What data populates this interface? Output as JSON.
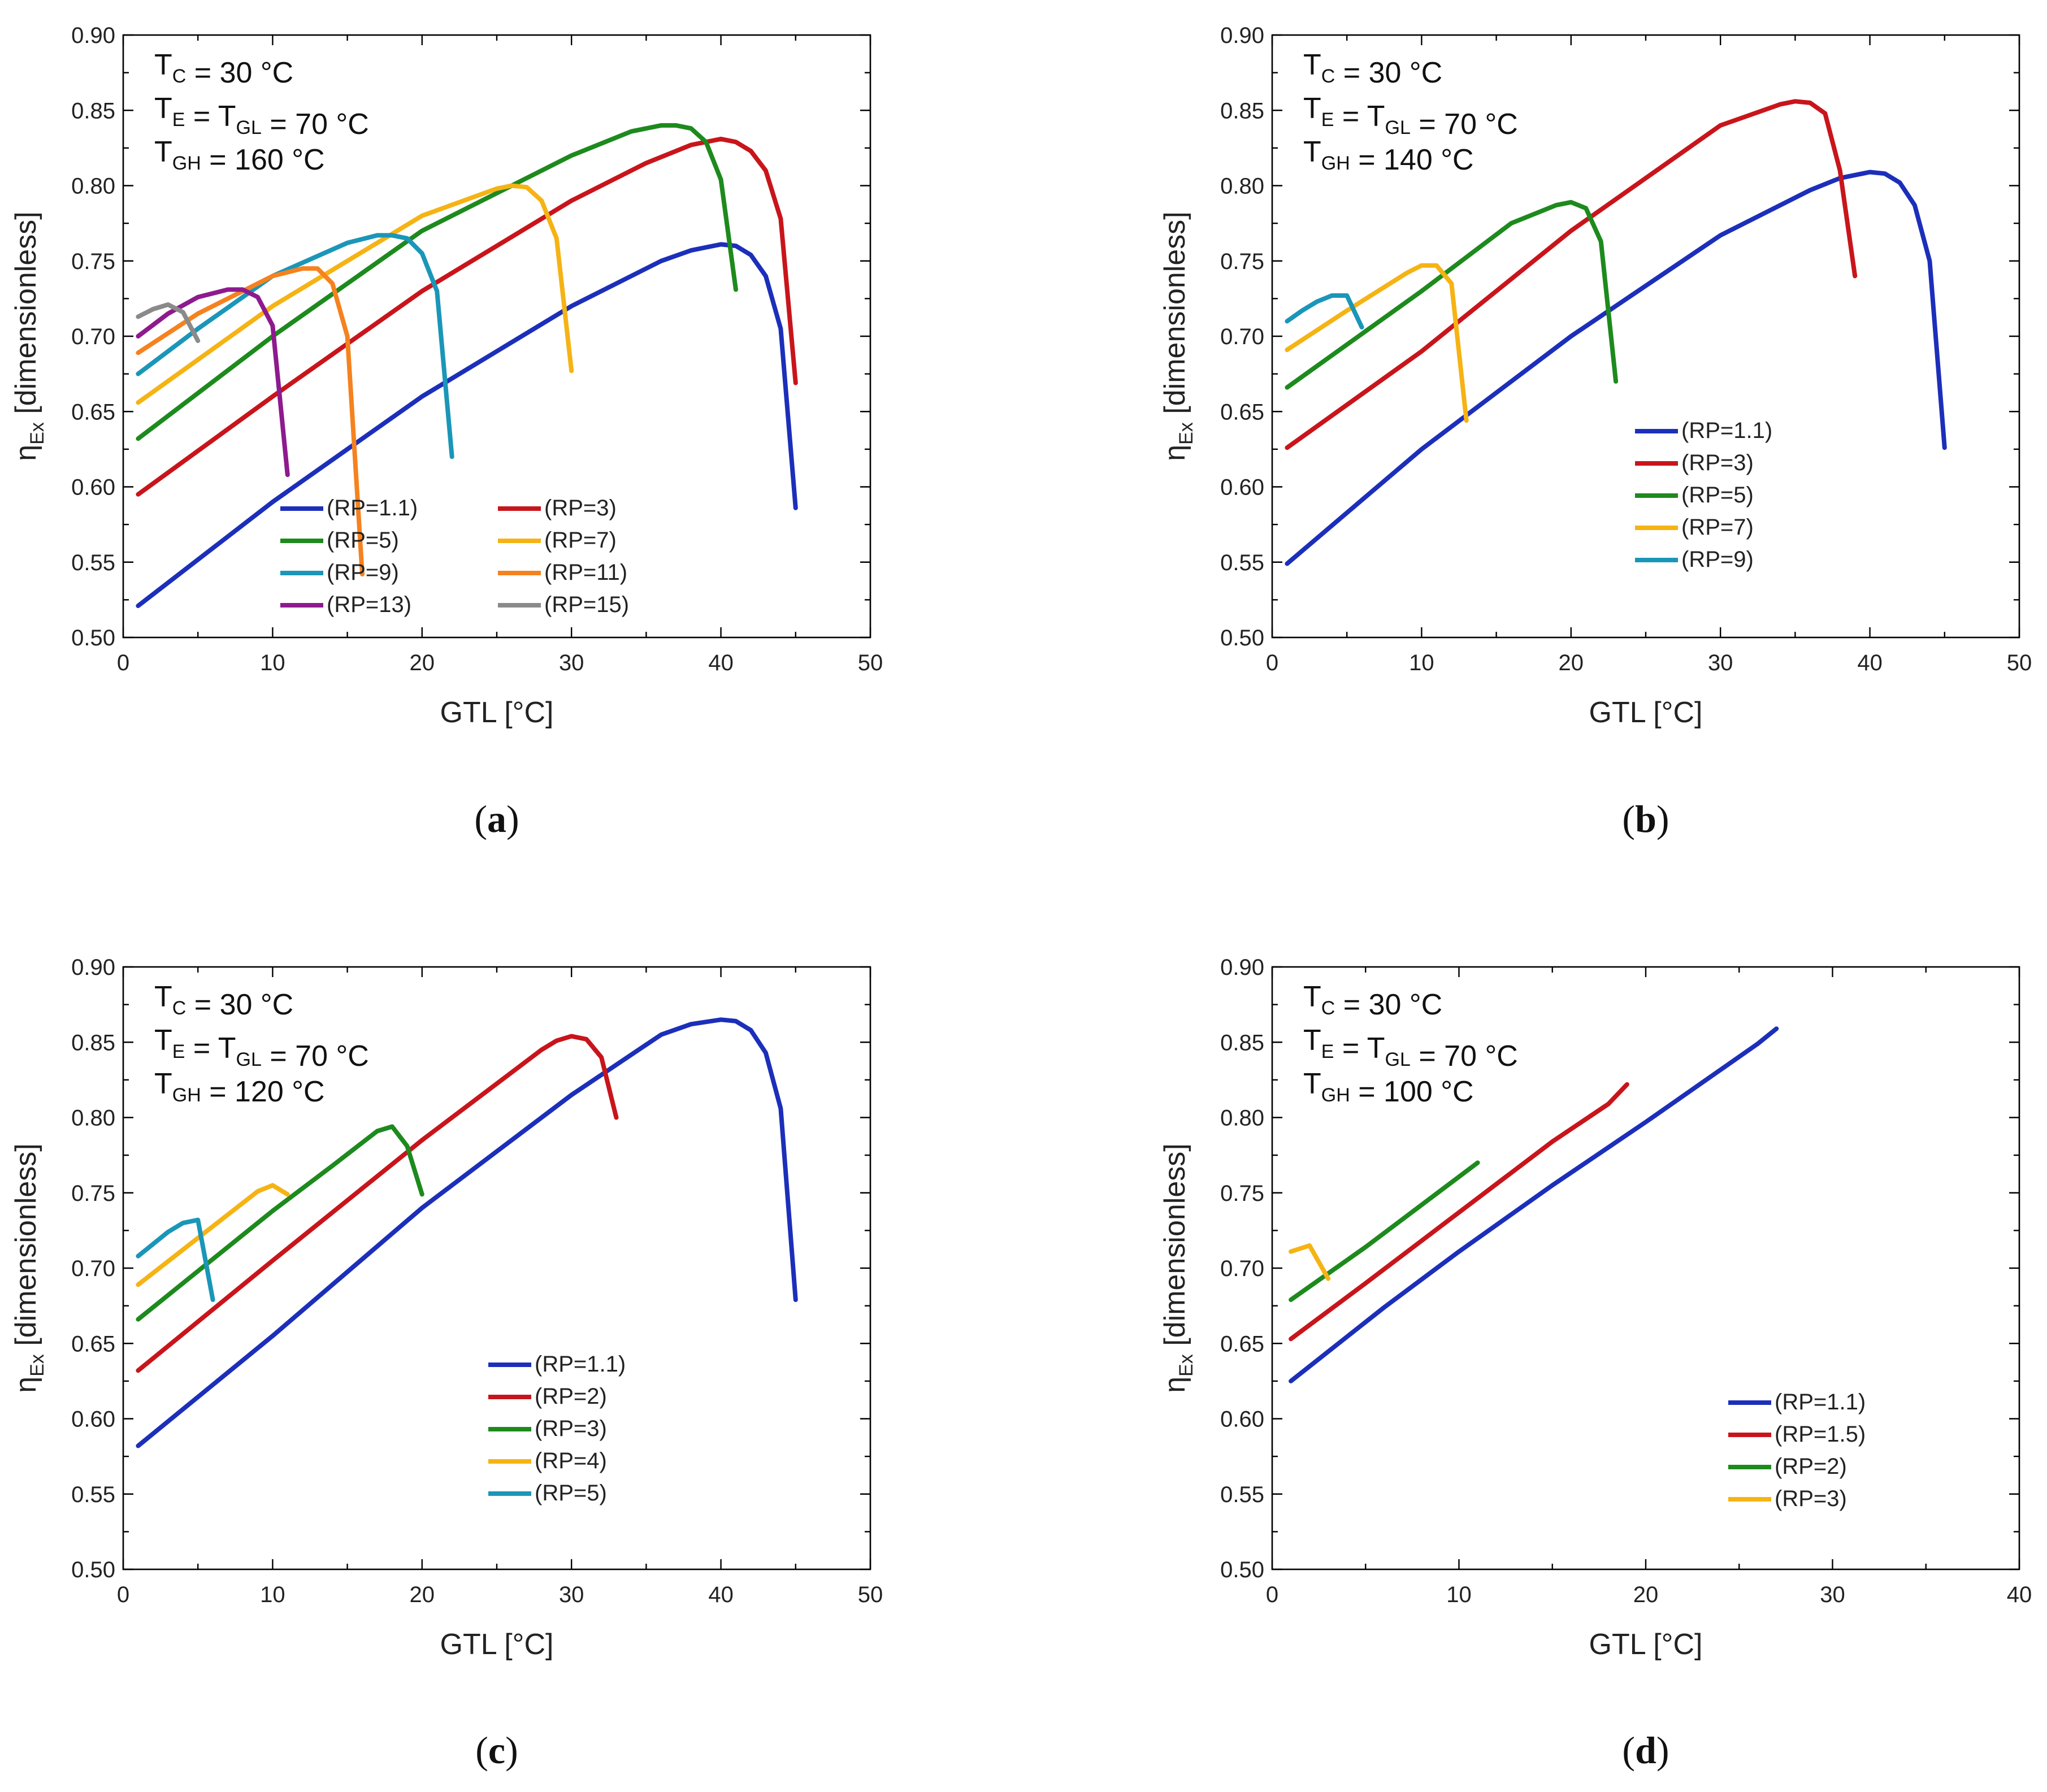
{
  "chart_data": [
    {
      "type": "line",
      "caption": "a",
      "annotation": [
        "T_C = 30 °C",
        "T_E = T_GL = 70 °C",
        "T_GH = 160 °C"
      ],
      "xlabel": "GTL [°C]",
      "ylabel": "η_Ex [dimensionless]",
      "xlim": [
        0,
        50
      ],
      "ylim": [
        0.5,
        0.9
      ],
      "xticks": [
        "0",
        "10",
        "20",
        "30",
        "40",
        "50"
      ],
      "yticks": [
        "0.50",
        "0.55",
        "0.60",
        "0.65",
        "0.70",
        "0.75",
        "0.80",
        "0.85",
        "0.90"
      ],
      "legend_columns": 2,
      "series": [
        {
          "name": "(RP=1.1)",
          "color": "#1c2fba",
          "x": [
            1,
            10,
            20,
            30,
            36,
            38,
            40,
            41,
            42,
            43,
            44,
            45
          ],
          "y": [
            0.521,
            0.59,
            0.66,
            0.72,
            0.75,
            0.757,
            0.761,
            0.76,
            0.754,
            0.74,
            0.705,
            0.586
          ]
        },
        {
          "name": "(RP=3)",
          "color": "#c8151b",
          "x": [
            1,
            10,
            20,
            30,
            35,
            38,
            40,
            41,
            42,
            43,
            44,
            45
          ],
          "y": [
            0.595,
            0.66,
            0.73,
            0.79,
            0.815,
            0.827,
            0.831,
            0.829,
            0.823,
            0.81,
            0.778,
            0.669
          ]
        },
        {
          "name": "(RP=5)",
          "color": "#1d8a1d",
          "x": [
            1,
            10,
            20,
            30,
            34,
            36,
            37,
            38,
            39,
            40,
            41
          ],
          "y": [
            0.632,
            0.7,
            0.77,
            0.82,
            0.836,
            0.84,
            0.84,
            0.838,
            0.829,
            0.804,
            0.731
          ]
        },
        {
          "name": "(RP=7)",
          "color": "#f5b314",
          "x": [
            1,
            10,
            20,
            25,
            26,
            27,
            28,
            29,
            30
          ],
          "y": [
            0.656,
            0.72,
            0.78,
            0.798,
            0.8,
            0.799,
            0.79,
            0.765,
            0.677
          ]
        },
        {
          "name": "(RP=9)",
          "color": "#1a96b8",
          "x": [
            1,
            5,
            10,
            15,
            17,
            18,
            19,
            20,
            21,
            22
          ],
          "y": [
            0.675,
            0.705,
            0.74,
            0.762,
            0.767,
            0.767,
            0.765,
            0.755,
            0.73,
            0.62
          ]
        },
        {
          "name": "(RP=11)",
          "color": "#f5821f",
          "x": [
            1,
            5,
            10,
            12,
            13,
            14,
            15,
            16
          ],
          "y": [
            0.689,
            0.715,
            0.74,
            0.745,
            0.745,
            0.735,
            0.7,
            0.542
          ]
        },
        {
          "name": "(RP=13)",
          "color": "#8e1a8e",
          "x": [
            1,
            3,
            5,
            7,
            8,
            9,
            10,
            11
          ],
          "y": [
            0.7,
            0.715,
            0.726,
            0.731,
            0.731,
            0.726,
            0.707,
            0.608
          ]
        },
        {
          "name": "(RP=15)",
          "color": "#8a8a8a",
          "x": [
            1,
            2,
            3,
            4,
            5
          ],
          "y": [
            0.713,
            0.718,
            0.721,
            0.716,
            0.697
          ]
        }
      ]
    },
    {
      "type": "line",
      "caption": "b",
      "annotation": [
        "T_C = 30 °C",
        "T_E = T_GL = 70 °C",
        "T_GH = 140 °C"
      ],
      "xlabel": "GTL [°C]",
      "ylabel": "η_Ex [dimensionless]",
      "xlim": [
        0,
        50
      ],
      "ylim": [
        0.5,
        0.9
      ],
      "xticks": [
        "0",
        "10",
        "20",
        "30",
        "40",
        "50"
      ],
      "yticks": [
        "0.50",
        "0.55",
        "0.60",
        "0.65",
        "0.70",
        "0.75",
        "0.80",
        "0.85",
        "0.90"
      ],
      "legend_columns": 1,
      "series": [
        {
          "name": "(RP=1.1)",
          "color": "#1c2fba",
          "x": [
            1,
            10,
            20,
            30,
            36,
            38,
            40,
            41,
            42,
            43,
            44,
            45
          ],
          "y": [
            0.549,
            0.625,
            0.7,
            0.767,
            0.797,
            0.805,
            0.809,
            0.808,
            0.802,
            0.787,
            0.75,
            0.626
          ]
        },
        {
          "name": "(RP=3)",
          "color": "#c8151b",
          "x": [
            1,
            10,
            20,
            30,
            34,
            35,
            36,
            37,
            38,
            39
          ],
          "y": [
            0.626,
            0.69,
            0.77,
            0.84,
            0.854,
            0.856,
            0.855,
            0.848,
            0.81,
            0.74
          ]
        },
        {
          "name": "(RP=5)",
          "color": "#1d8a1d",
          "x": [
            1,
            10,
            16,
            19,
            20,
            21,
            22,
            23
          ],
          "y": [
            0.666,
            0.73,
            0.775,
            0.787,
            0.789,
            0.785,
            0.763,
            0.67
          ]
        },
        {
          "name": "(RP=7)",
          "color": "#f5b314",
          "x": [
            1,
            5,
            9,
            10,
            11,
            12,
            13
          ],
          "y": [
            0.691,
            0.717,
            0.742,
            0.747,
            0.747,
            0.735,
            0.644
          ]
        },
        {
          "name": "(RP=9)",
          "color": "#1a96b8",
          "x": [
            1,
            2,
            3,
            4,
            5,
            6
          ],
          "y": [
            0.71,
            0.717,
            0.723,
            0.727,
            0.727,
            0.706
          ]
        }
      ]
    },
    {
      "type": "line",
      "caption": "c",
      "annotation": [
        "T_C = 30 °C",
        "T_E = T_GL = 70 °C",
        "T_GH = 120 °C"
      ],
      "xlabel": "GTL [°C]",
      "ylabel": "η_Ex [dimensionless]",
      "xlim": [
        0,
        50
      ],
      "ylim": [
        0.5,
        0.9
      ],
      "xticks": [
        "0",
        "10",
        "20",
        "30",
        "40",
        "50"
      ],
      "yticks": [
        "0.50",
        "0.55",
        "0.60",
        "0.65",
        "0.70",
        "0.75",
        "0.80",
        "0.85",
        "0.90"
      ],
      "legend_columns": 1,
      "series": [
        {
          "name": "(RP=1.1)",
          "color": "#1c2fba",
          "x": [
            1,
            10,
            20,
            30,
            36,
            38,
            40,
            41,
            42,
            43,
            44,
            45
          ],
          "y": [
            0.582,
            0.655,
            0.74,
            0.815,
            0.855,
            0.862,
            0.865,
            0.864,
            0.858,
            0.843,
            0.806,
            0.679
          ]
        },
        {
          "name": "(RP=2)",
          "color": "#c8151b",
          "x": [
            1,
            10,
            20,
            28,
            29,
            30,
            31,
            32,
            33
          ],
          "y": [
            0.632,
            0.705,
            0.785,
            0.845,
            0.851,
            0.854,
            0.852,
            0.84,
            0.8
          ]
        },
        {
          "name": "(RP=3)",
          "color": "#1d8a1d",
          "x": [
            1,
            10,
            14,
            17,
            18,
            19,
            20
          ],
          "y": [
            0.666,
            0.738,
            0.768,
            0.791,
            0.794,
            0.781,
            0.749
          ]
        },
        {
          "name": "(RP=4)",
          "color": "#f5b314",
          "x": [
            1,
            5,
            9,
            10,
            11
          ],
          "y": [
            0.689,
            0.72,
            0.751,
            0.755,
            0.749
          ]
        },
        {
          "name": "(RP=5)",
          "color": "#1a96b8",
          "x": [
            1,
            2,
            3,
            4,
            5,
            6
          ],
          "y": [
            0.708,
            0.716,
            0.724,
            0.73,
            0.732,
            0.679
          ]
        }
      ]
    },
    {
      "type": "line",
      "caption": "d",
      "annotation": [
        "T_C = 30 °C",
        "T_E = T_GL = 70 °C",
        "T_GH = 100 °C"
      ],
      "xlabel": "GTL [°C]",
      "ylabel": "η_Ex [dimensionless]",
      "xlim": [
        0,
        40
      ],
      "ylim": [
        0.5,
        0.9
      ],
      "xticks": [
        "0",
        "10",
        "20",
        "30",
        "40"
      ],
      "yticks": [
        "0.50",
        "0.55",
        "0.60",
        "0.65",
        "0.70",
        "0.75",
        "0.80",
        "0.85",
        "0.90"
      ],
      "legend_columns": 1,
      "series": [
        {
          "name": "(RP=1.1)",
          "color": "#1c2fba",
          "x": [
            1,
            6,
            10,
            15,
            20,
            26,
            27
          ],
          "y": [
            0.625,
            0.674,
            0.711,
            0.755,
            0.797,
            0.849,
            0.859
          ]
        },
        {
          "name": "(RP=1.5)",
          "color": "#c8151b",
          "x": [
            1,
            5,
            10,
            15,
            18,
            19
          ],
          "y": [
            0.653,
            0.69,
            0.737,
            0.784,
            0.809,
            0.822
          ]
        },
        {
          "name": "(RP=2)",
          "color": "#1d8a1d",
          "x": [
            1,
            5,
            11
          ],
          "y": [
            0.679,
            0.714,
            0.77
          ]
        },
        {
          "name": "(RP=3)",
          "color": "#f5b314",
          "x": [
            1,
            2,
            3
          ],
          "y": [
            0.711,
            0.715,
            0.693
          ]
        }
      ]
    }
  ]
}
